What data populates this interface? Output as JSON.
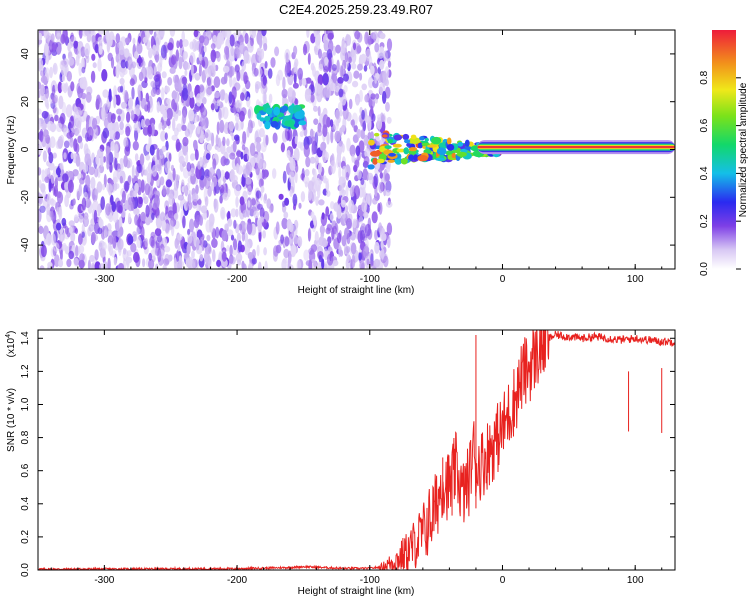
{
  "title": "C2E4.2025.259.23.49.R07",
  "chart_data": [
    {
      "type": "heatmap",
      "xlabel": "Height of straight line (km)",
      "ylabel": "Frequency (Hz)",
      "xlim": [
        -350,
        130
      ],
      "ylim": [
        -50,
        50
      ],
      "xticks": [
        -300,
        -200,
        -100,
        0,
        100
      ],
      "yticks": [
        -40,
        -20,
        0,
        20,
        40
      ],
      "colorbar": {
        "label": "Normalized spectral amplitude",
        "range": [
          0,
          1
        ],
        "ticks": [
          "0.0",
          "0.2",
          "0.4",
          "0.6",
          "0.8"
        ]
      },
      "features": [
        {
          "x_range": [
            -350,
            -95
          ],
          "y_range": [
            -50,
            50
          ],
          "amplitude": 0.15
        },
        {
          "x_range": [
            -185,
            -150
          ],
          "y_center": 14,
          "amplitude": 0.45
        },
        {
          "x_range": [
            -100,
            0
          ],
          "y_center": 0,
          "amplitude": 0.7
        },
        {
          "x_range": [
            0,
            130
          ],
          "y_center": 1,
          "amplitude": 0.95
        }
      ]
    },
    {
      "type": "line",
      "xlabel": "Height of straight line (km)",
      "ylabel": "SNR (10 * v/v)",
      "scale_label": "(x10",
      "scale_exp": "4",
      "xlim": [
        -350,
        130
      ],
      "ylim": [
        0,
        1.45
      ],
      "xticks": [
        -300,
        -200,
        -100,
        0,
        100
      ],
      "yticks": [
        "0.0",
        "0.2",
        "0.4",
        "0.6",
        "0.8",
        "1.0",
        "1.2",
        "1.4"
      ],
      "series": [
        {
          "color": "#e8221f",
          "x": [
            -350,
            -200,
            -160,
            -150,
            -120,
            -100,
            -90,
            -80,
            -70,
            -60,
            -55,
            -50,
            -45,
            -40,
            -35,
            -30,
            -25,
            -22,
            -20,
            -15,
            -10,
            -5,
            0,
            5,
            10,
            15,
            20,
            25,
            30,
            35,
            40,
            50,
            60,
            70,
            80,
            90,
            100,
            110,
            120,
            130
          ],
          "y": [
            0.005,
            0.008,
            0.015,
            0.02,
            0.01,
            0.01,
            0.02,
            0.06,
            0.12,
            0.22,
            0.3,
            0.38,
            0.55,
            0.5,
            0.62,
            0.45,
            0.55,
            0.75,
            0.62,
            0.65,
            0.72,
            0.78,
            0.85,
            0.95,
            1.05,
            1.18,
            1.22,
            1.3,
            1.36,
            1.4,
            1.42,
            1.41,
            1.4,
            1.41,
            1.4,
            1.39,
            1.4,
            1.39,
            1.38,
            1.38
          ]
        }
      ],
      "spikes": [
        {
          "x": -20,
          "y": 1.42
        },
        {
          "x": -45,
          "y": 0.68
        },
        {
          "x": -38,
          "y": 0.7
        },
        {
          "x": 95,
          "y": 1.2
        },
        {
          "x": 120,
          "y": 1.22
        }
      ]
    }
  ]
}
